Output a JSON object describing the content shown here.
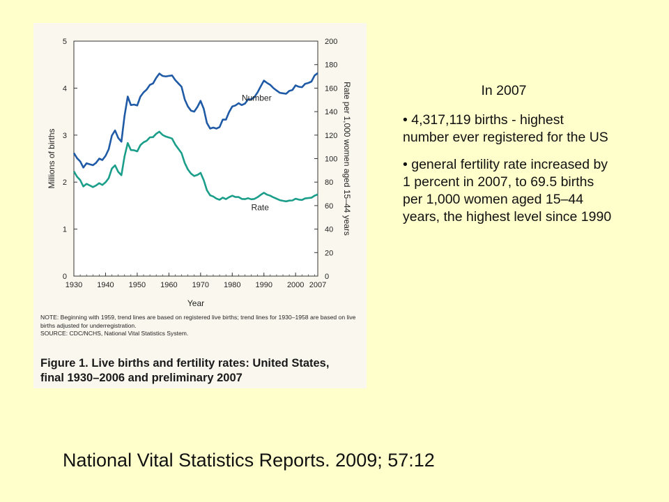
{
  "side_text": {
    "heading": "In 2007",
    "bullets": [
      "• 4,317,119 births - highest number ever registered for the US",
      "• general fertility rate increased by 1 percent in 2007, to 69.5 births per 1,000 women aged 15–44 years, the highest level since 1990"
    ]
  },
  "citation": "National Vital Statistics Reports. 2009; 57:12",
  "figure": {
    "caption_line1": "Figure 1. Live births and fertility rates: United States,",
    "caption_line2": "final 1930–2006 and preliminary 2007",
    "note": "NOTE: Beginning with 1959, trend lines are based on registered live births; trend lines for 1930–1958 are based on live births adjusted for underregistration.",
    "source": "SOURCE: CDC/NCHS, National Vital Statistics System."
  },
  "colors": {
    "background": "#ffffcc",
    "panel": "#faf7ee",
    "number_line": "#1f5aa6",
    "rate_line": "#1a9e8a"
  },
  "chart_data": {
    "type": "line",
    "xlabel": "Year",
    "ylabel_left": "Millions of births",
    "ylabel_right": "Rate per 1,000 women aged 15–44 years",
    "x_ticks": [
      "1930",
      "1940",
      "1950",
      "1960",
      "1970",
      "1980",
      "1990",
      "2000",
      "2007"
    ],
    "y_left_ticks": [
      "0",
      "1",
      "2",
      "3",
      "4",
      "5"
    ],
    "y_right_ticks": [
      "0",
      "20",
      "40",
      "60",
      "80",
      "100",
      "120",
      "140",
      "160",
      "180",
      "200"
    ],
    "xlim": [
      1930,
      2007
    ],
    "ylim_left": [
      0,
      5
    ],
    "ylim_right": [
      0,
      200
    ],
    "grid": false,
    "series": [
      {
        "name": "Number",
        "axis": "left",
        "x": [
          1930,
          1931,
          1932,
          1933,
          1934,
          1935,
          1936,
          1937,
          1938,
          1939,
          1940,
          1941,
          1942,
          1943,
          1944,
          1945,
          1946,
          1947,
          1948,
          1949,
          1950,
          1951,
          1952,
          1953,
          1954,
          1955,
          1956,
          1957,
          1958,
          1959,
          1960,
          1961,
          1962,
          1963,
          1964,
          1965,
          1966,
          1967,
          1968,
          1969,
          1970,
          1971,
          1972,
          1973,
          1974,
          1975,
          1976,
          1977,
          1978,
          1979,
          1980,
          1981,
          1982,
          1983,
          1984,
          1985,
          1986,
          1987,
          1988,
          1989,
          1990,
          1991,
          1992,
          1993,
          1994,
          1995,
          1996,
          1997,
          1998,
          1999,
          2000,
          2001,
          2002,
          2003,
          2004,
          2005,
          2006,
          2007
        ],
        "values": [
          2.62,
          2.51,
          2.44,
          2.31,
          2.4,
          2.38,
          2.36,
          2.41,
          2.5,
          2.47,
          2.56,
          2.7,
          2.99,
          3.1,
          2.94,
          2.86,
          3.41,
          3.82,
          3.64,
          3.65,
          3.63,
          3.82,
          3.91,
          3.97,
          4.07,
          4.1,
          4.22,
          4.31,
          4.26,
          4.25,
          4.26,
          4.27,
          4.17,
          4.1,
          4.03,
          3.76,
          3.61,
          3.52,
          3.5,
          3.6,
          3.73,
          3.56,
          3.26,
          3.14,
          3.16,
          3.14,
          3.17,
          3.33,
          3.33,
          3.49,
          3.61,
          3.63,
          3.68,
          3.64,
          3.67,
          3.76,
          3.76,
          3.81,
          3.91,
          4.04,
          4.16,
          4.11,
          4.07,
          4.0,
          3.95,
          3.9,
          3.89,
          3.88,
          3.94,
          3.96,
          4.06,
          4.03,
          4.02,
          4.09,
          4.11,
          4.14,
          4.27,
          4.32
        ]
      },
      {
        "name": "Rate",
        "axis": "right",
        "x": [
          1930,
          1931,
          1932,
          1933,
          1934,
          1935,
          1936,
          1937,
          1938,
          1939,
          1940,
          1941,
          1942,
          1943,
          1944,
          1945,
          1946,
          1947,
          1948,
          1949,
          1950,
          1951,
          1952,
          1953,
          1954,
          1955,
          1956,
          1957,
          1958,
          1959,
          1960,
          1961,
          1962,
          1963,
          1964,
          1965,
          1966,
          1967,
          1968,
          1969,
          1970,
          1971,
          1972,
          1973,
          1974,
          1975,
          1976,
          1977,
          1978,
          1979,
          1980,
          1981,
          1982,
          1983,
          1984,
          1985,
          1986,
          1987,
          1988,
          1989,
          1990,
          1991,
          1992,
          1993,
          1994,
          1995,
          1996,
          1997,
          1998,
          1999,
          2000,
          2001,
          2002,
          2003,
          2004,
          2005,
          2006,
          2007
        ],
        "values": [
          89.2,
          84.6,
          81.7,
          76.3,
          78.5,
          77.2,
          75.8,
          77.1,
          79.1,
          77.6,
          79.9,
          83.4,
          91.5,
          94.3,
          88.8,
          85.9,
          101.9,
          113.3,
          107.3,
          107.1,
          106.2,
          111.5,
          113.9,
          115.2,
          118.1,
          118.3,
          121.2,
          122.9,
          120.2,
          118.8,
          118.0,
          117.1,
          112.0,
          108.3,
          104.7,
          96.3,
          90.8,
          87.2,
          85.2,
          86.1,
          87.9,
          81.6,
          73.1,
          68.8,
          67.8,
          66.0,
          65.0,
          66.8,
          65.5,
          67.2,
          68.4,
          67.3,
          67.3,
          65.7,
          65.5,
          66.3,
          65.4,
          65.7,
          67.2,
          69.2,
          70.9,
          69.3,
          68.4,
          67.0,
          65.9,
          64.6,
          64.1,
          63.6,
          64.3,
          64.4,
          65.9,
          65.1,
          64.8,
          66.1,
          66.4,
          66.7,
          68.5,
          69.5
        ]
      }
    ]
  }
}
